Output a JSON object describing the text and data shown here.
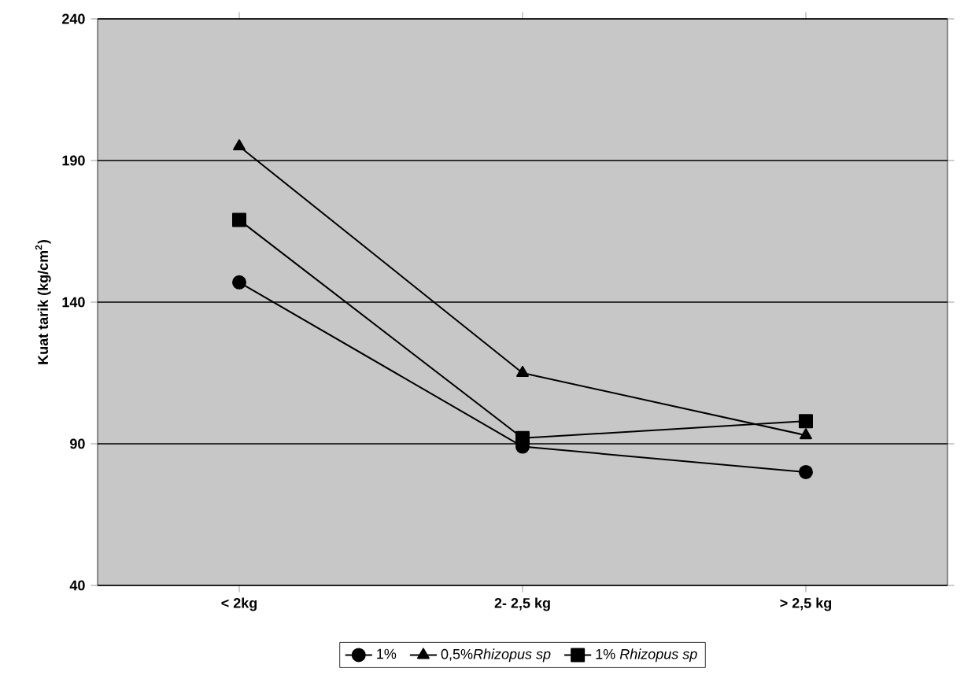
{
  "chart_data": {
    "type": "line",
    "ylabel": "Kuat tarik (kg/cm$^{2}$)",
    "categories": [
      "< 2kg",
      "2- 2,5 kg",
      "> 2,5 kg"
    ],
    "series": [
      {
        "name": "1%",
        "color": "#000000",
        "marker": "circle",
        "values": [
          147,
          89,
          80
        ]
      },
      {
        "name": "0,5%*Rhizopus sp*",
        "color": "#000000",
        "marker": "triangle",
        "values": [
          195,
          115,
          93
        ]
      },
      {
        "name": "1% *Rhizopus sp*",
        "color": "#000000",
        "marker": "square",
        "values": [
          169,
          92,
          98
        ]
      }
    ],
    "ylim": [
      40,
      240
    ],
    "yticks": [
      40,
      90,
      140,
      190,
      240
    ],
    "grid": "y",
    "legend": "bottom"
  }
}
